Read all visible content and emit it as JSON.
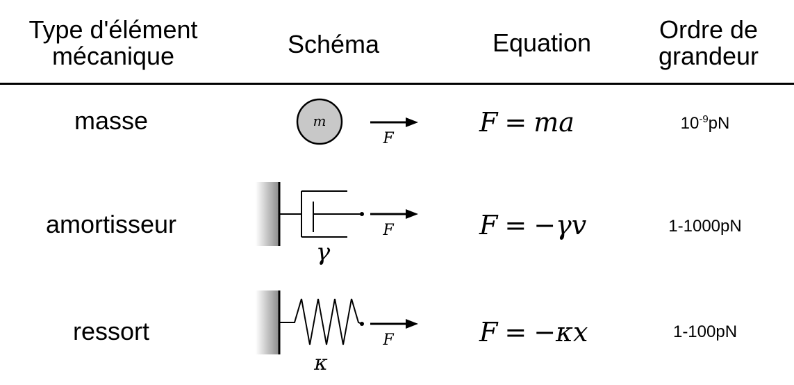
{
  "headers": {
    "type": "Type d'élément mécanique",
    "schema": "Schéma",
    "equation": "Equation",
    "magnitude": "Ordre de grandeur"
  },
  "rows": [
    {
      "type": "masse",
      "mass_symbol": "m",
      "force_symbol": "F",
      "eq_lhs": "F",
      "eq_op": "=",
      "eq_rhs": "ma",
      "magnitude_base": "10",
      "magnitude_exp": "-9",
      "magnitude_unit": "pN"
    },
    {
      "type": "amortisseur",
      "element_symbol": "γ",
      "force_symbol": "F",
      "eq_lhs": "F",
      "eq_op": "=",
      "eq_rhs": "−γv",
      "magnitude": "1-1000pN"
    },
    {
      "type": "ressort",
      "element_symbol": "κ",
      "force_symbol": "F",
      "eq_lhs": "F",
      "eq_op": "=",
      "eq_rhs": "−κx",
      "magnitude": "1-100pN"
    }
  ]
}
